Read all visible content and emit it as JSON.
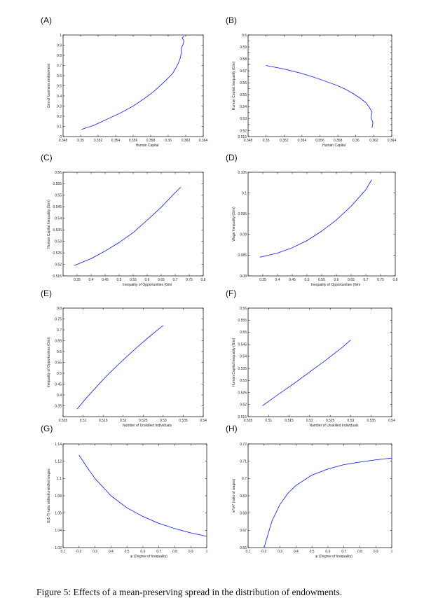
{
  "caption": "Figure 5: Effects of a mean-preserving spread in the distribution of endowments.",
  "colors": {
    "line": "#1f2fe0",
    "axis": "#000000"
  },
  "chart_data": [
    {
      "panel": "(A)",
      "type": "line",
      "xlabel": "Human Capital",
      "ylabel": "Gini of business endowment",
      "xlim": [
        0.348,
        0.364
      ],
      "ylim": [
        0,
        1
      ],
      "xticks": [
        0.348,
        0.35,
        0.352,
        0.354,
        0.356,
        0.358,
        0.36,
        0.362,
        0.364
      ],
      "xtick_labels": [
        "0.348",
        "0.35",
        "0.352",
        "0.354",
        "0.356",
        "0.358",
        "0.36",
        "0.362",
        "0.364"
      ],
      "yticks": [
        0,
        0.1,
        0.2,
        0.3,
        0.4,
        0.5,
        0.6,
        0.7,
        0.8,
        0.9,
        1
      ],
      "ytick_labels": [
        "0",
        "0.1",
        "0.2",
        "0.3",
        "0.4",
        "0.5",
        "0.6",
        "0.7",
        "0.8",
        "0.9",
        "1"
      ],
      "series": [
        {
          "x": [
            0.3501,
            0.3515,
            0.353,
            0.3545,
            0.356,
            0.3572,
            0.3583,
            0.3592,
            0.3598,
            0.3605,
            0.3609,
            0.3612,
            0.3614,
            0.3615,
            0.3615,
            0.3617,
            0.3618,
            0.3616,
            0.3618
          ],
          "y": [
            0.07,
            0.11,
            0.17,
            0.23,
            0.3,
            0.37,
            0.44,
            0.51,
            0.56,
            0.62,
            0.68,
            0.73,
            0.78,
            0.83,
            0.87,
            0.91,
            0.94,
            0.97,
            0.99
          ]
        }
      ]
    },
    {
      "panel": "(B)",
      "type": "line",
      "xlabel": "Human Capital",
      "ylabel": "Human Capital Inequality (Gini)",
      "xlim": [
        0.348,
        0.364
      ],
      "ylim": [
        0.515,
        0.6
      ],
      "xticks": [
        0.348,
        0.35,
        0.352,
        0.354,
        0.356,
        0.358,
        0.36,
        0.362,
        0.364
      ],
      "xtick_labels": [
        "0.348",
        "0.35",
        "0.352",
        "0.354",
        "0.356",
        "0.358",
        "0.36",
        "0.362",
        "0.364"
      ],
      "yticks": [
        0.515,
        0.52,
        0.525,
        0.53,
        0.535,
        0.54,
        0.545,
        0.55,
        0.555,
        0.56,
        0.565,
        0.57,
        0.575,
        0.58,
        0.585,
        0.59,
        0.595,
        0.6
      ],
      "ytick_labels": [
        "0.515",
        "0.52",
        "",
        "0.53",
        "",
        "0.54",
        "",
        "0.55",
        "",
        "0.56",
        "",
        "0.57",
        "",
        "0.58",
        "",
        "0.59",
        "",
        "0.6"
      ],
      "series": [
        {
          "x": [
            0.35,
            0.352,
            0.354,
            0.356,
            0.358,
            0.359,
            0.3598,
            0.3605,
            0.3611,
            0.3615,
            0.3618,
            0.3617,
            0.3619,
            0.3618
          ],
          "y": [
            0.5745,
            0.5715,
            0.5678,
            0.563,
            0.5575,
            0.554,
            0.5505,
            0.547,
            0.5435,
            0.5395,
            0.5355,
            0.531,
            0.5265,
            0.5222
          ]
        }
      ]
    },
    {
      "panel": "(C)",
      "type": "line",
      "xlabel": "Inequality of Opportunities (Gini",
      "ylabel": "Human Capital Inequality (Gini)",
      "xlim": [
        0.3,
        0.8
      ],
      "ylim": [
        0.515,
        0.56
      ],
      "xticks": [
        0.3,
        0.35,
        0.4,
        0.45,
        0.5,
        0.55,
        0.6,
        0.65,
        0.7,
        0.75,
        0.8
      ],
      "xtick_labels": [
        "",
        "0.35",
        "0.4",
        "0.45",
        "0.5",
        "0.55",
        "0.6",
        "0.65",
        "0.7",
        "0.75",
        "0.8"
      ],
      "yticks": [
        0.515,
        0.52,
        0.525,
        0.53,
        0.535,
        0.54,
        0.545,
        0.55,
        0.555,
        0.56
      ],
      "ytick_labels": [
        "0.515",
        "0.52",
        "0.525",
        "0.53",
        "0.535",
        "0.54",
        "0.545",
        "0.55",
        "0.555",
        "0.56"
      ],
      "series": [
        {
          "x": [
            0.34,
            0.4,
            0.45,
            0.5,
            0.55,
            0.6,
            0.65,
            0.7,
            0.72
          ],
          "y": [
            0.5195,
            0.5225,
            0.5258,
            0.5295,
            0.5338,
            0.5392,
            0.5448,
            0.5512,
            0.5535
          ]
        }
      ]
    },
    {
      "panel": "(D)",
      "type": "line",
      "xlabel": "Inequality of Opportunities (Gini",
      "ylabel": "Wage Inequality (Gini)",
      "xlim": [
        0.3,
        0.8
      ],
      "ylim": [
        0.08,
        0.105
      ],
      "xticks": [
        0.3,
        0.35,
        0.4,
        0.45,
        0.5,
        0.55,
        0.6,
        0.65,
        0.7,
        0.75,
        0.8
      ],
      "xtick_labels": [
        "",
        "0.35",
        "0.4",
        "0.45",
        "0.5",
        "0.55",
        "0.6",
        "0.65",
        "0.7",
        "0.75",
        "0.8"
      ],
      "yticks": [
        0.08,
        0.085,
        0.09,
        0.095,
        0.1,
        0.105
      ],
      "ytick_labels": [
        "0.08",
        "0.085",
        "0.09",
        "0.095",
        "0.1",
        "0.105"
      ],
      "series": [
        {
          "x": [
            0.34,
            0.4,
            0.45,
            0.5,
            0.55,
            0.6,
            0.65,
            0.7,
            0.72
          ],
          "y": [
            0.0845,
            0.0855,
            0.0868,
            0.0885,
            0.0908,
            0.0935,
            0.0968,
            0.1008,
            0.1032
          ]
        }
      ]
    },
    {
      "panel": "(E)",
      "type": "line",
      "xlabel": "Number of Unskilled Individuals",
      "ylabel": "Inequality of Opportunities (Gini)",
      "xlim": [
        0.505,
        0.54
      ],
      "ylim": [
        0.3,
        0.8
      ],
      "xticks": [
        0.505,
        0.51,
        0.515,
        0.52,
        0.525,
        0.53,
        0.535,
        0.54
      ],
      "xtick_labels": [
        "0.505",
        "0.51",
        "0.515",
        "0.52",
        "0.525",
        "0.53",
        "0.535",
        "0.54"
      ],
      "yticks": [
        0.3,
        0.35,
        0.4,
        0.45,
        0.5,
        0.55,
        0.6,
        0.65,
        0.7,
        0.75,
        0.8
      ],
      "ytick_labels": [
        "",
        "0.35",
        "0.4",
        "0.45",
        "0.5",
        "0.55",
        "0.6",
        "0.65",
        "0.7",
        "0.75",
        "0.8"
      ],
      "series": [
        {
          "x": [
            0.5085,
            0.511,
            0.5135,
            0.516,
            0.5185,
            0.521,
            0.5235,
            0.526,
            0.5285,
            0.53
          ],
          "y": [
            0.335,
            0.39,
            0.44,
            0.49,
            0.535,
            0.578,
            0.62,
            0.66,
            0.698,
            0.72
          ]
        }
      ]
    },
    {
      "panel": "(F)",
      "type": "line",
      "xlabel": "Number of Unskilled Individuals",
      "ylabel": "Human Capital Inequality (Gini)",
      "xlim": [
        0.505,
        0.54
      ],
      "ylim": [
        0.515,
        0.56
      ],
      "xticks": [
        0.505,
        0.51,
        0.515,
        0.52,
        0.525,
        0.53,
        0.535,
        0.54
      ],
      "xtick_labels": [
        "0.505",
        "0.51",
        "0.515",
        "0.52",
        "0.525",
        "0.53",
        "0.535",
        "0.54"
      ],
      "yticks": [
        0.515,
        0.52,
        0.525,
        0.53,
        0.535,
        0.54,
        0.545,
        0.55,
        0.555,
        0.56
      ],
      "ytick_labels": [
        "0.515",
        "0.52",
        "0.525",
        "0.53",
        "0.535",
        "0.54",
        "0.545",
        "0.55",
        "0.555",
        "0.56"
      ],
      "series": [
        {
          "x": [
            0.5085,
            0.512,
            0.516,
            0.52,
            0.524,
            0.528,
            0.53
          ],
          "y": [
            0.5195,
            0.5238,
            0.5285,
            0.5335,
            0.5385,
            0.5438,
            0.5468
          ]
        }
      ]
    },
    {
      "panel": "(G)",
      "type": "line",
      "xlabel": "φ (Degree of Inequality)",
      "ylabel": "E(1-T) ratio skilled/unskilled wages",
      "xlim": [
        0.1,
        1
      ],
      "ylim": [
        1.02,
        1.14
      ],
      "xticks": [
        0.1,
        0.2,
        0.3,
        0.4,
        0.5,
        0.6,
        0.7,
        0.8,
        0.9,
        1
      ],
      "xtick_labels": [
        "0.1",
        "0.2",
        "0.3",
        "0.4",
        "0.5",
        "0.6",
        "0.7",
        "0.8",
        "0.9",
        "1"
      ],
      "yticks": [
        1.02,
        1.04,
        1.06,
        1.08,
        1.1,
        1.12,
        1.14
      ],
      "ytick_labels": [
        "1.02",
        "1.04",
        "1.06",
        "1.08",
        "1.1",
        "1.12",
        "1.14"
      ],
      "series": [
        {
          "x": [
            0.2,
            0.25,
            0.3,
            0.35,
            0.4,
            0.5,
            0.6,
            0.7,
            0.8,
            0.9,
            1.0
          ],
          "y": [
            1.127,
            1.113,
            1.1,
            1.09,
            1.08,
            1.066,
            1.056,
            1.048,
            1.042,
            1.037,
            1.033
          ]
        }
      ]
    },
    {
      "panel": "(H)",
      "type": "line",
      "xlabel": "φ (Degree of Inequality)",
      "ylabel": "w*/w* (ratio of wages)",
      "xlim": [
        0.1,
        1
      ],
      "ylim": [
        0.66,
        0.72
      ],
      "xticks": [
        0.1,
        0.2,
        0.3,
        0.4,
        0.5,
        0.6,
        0.7,
        0.8,
        0.9,
        1
      ],
      "xtick_labels": [
        "0.1",
        "0.2",
        "0.3",
        "0.4",
        "0.5",
        "0.6",
        "0.7",
        "0.8",
        "0.9",
        "1"
      ],
      "yticks": [
        0.66,
        0.67,
        0.68,
        0.69,
        0.7,
        0.71,
        0.72
      ],
      "ytick_labels": [
        "0.66",
        "0.67",
        "0.68",
        "0.69",
        "0.7",
        "0.71",
        "0.72"
      ],
      "series": [
        {
          "x": [
            0.2,
            0.25,
            0.3,
            0.35,
            0.4,
            0.5,
            0.6,
            0.7,
            0.8,
            0.9,
            1.0
          ],
          "y": [
            0.66,
            0.6755,
            0.685,
            0.6915,
            0.696,
            0.702,
            0.7055,
            0.708,
            0.7095,
            0.7108,
            0.7118
          ]
        }
      ]
    }
  ]
}
